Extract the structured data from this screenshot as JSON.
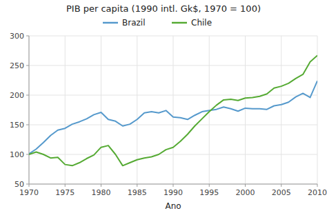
{
  "chart_data": {
    "type": "line",
    "title": "PIB per capita (1990 intl. Gk$, 1970 = 100)",
    "xlabel": "Ano",
    "x": [
      1970,
      1971,
      1972,
      1973,
      1974,
      1975,
      1976,
      1977,
      1978,
      1979,
      1980,
      1981,
      1982,
      1983,
      1984,
      1985,
      1986,
      1987,
      1988,
      1989,
      1990,
      1991,
      1992,
      1993,
      1994,
      1995,
      1996,
      1997,
      1998,
      1999,
      2000,
      2001,
      2002,
      2003,
      2004,
      2005,
      2006,
      2007,
      2008,
      2009,
      2010
    ],
    "series": [
      {
        "name": "Brazil",
        "color": "#5599cc",
        "values": [
          101,
          109,
          120,
          132,
          141,
          144,
          151,
          155,
          160,
          167,
          171,
          159,
          156,
          148,
          151,
          159,
          170,
          172,
          170,
          174,
          163,
          162,
          159,
          166,
          172,
          174,
          176,
          180,
          177,
          173,
          178,
          177,
          177,
          176,
          182,
          184,
          188,
          197,
          203,
          196,
          224
        ]
      },
      {
        "name": "Chile",
        "color": "#55aa33",
        "values": [
          100,
          104,
          100,
          94,
          95,
          83,
          81,
          86,
          93,
          99,
          112,
          115,
          100,
          81,
          86,
          91,
          94,
          96,
          100,
          108,
          112,
          122,
          134,
          148,
          160,
          172,
          183,
          192,
          193,
          191,
          195,
          196,
          198,
          202,
          212,
          215,
          220,
          228,
          235,
          256,
          267
        ]
      }
    ],
    "xlim": [
      1970,
      2010
    ],
    "ylim": [
      50,
      300
    ],
    "xticks": [
      1970,
      1975,
      1980,
      1985,
      1990,
      1995,
      2000,
      2005,
      2010
    ],
    "yticks": [
      50,
      100,
      150,
      200,
      250,
      300
    ],
    "grid": true,
    "legend": "top"
  }
}
